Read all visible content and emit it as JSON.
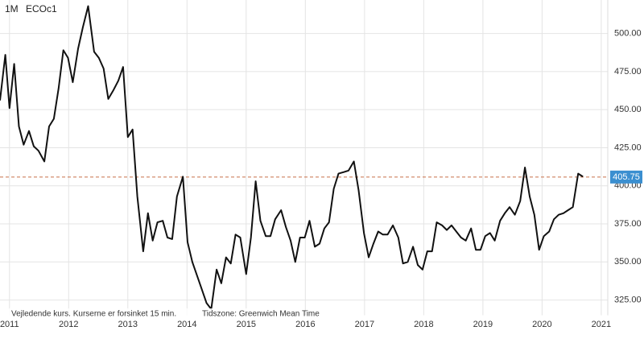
{
  "chart_data": {
    "type": "line",
    "interval": "1M",
    "note": "Vejledende kurs. Kurserne er forsinket 15 min.",
    "timezone": "Tidszone: Greenwich Mean Time",
    "current_price": 405.75,
    "current_price_color": "#3b8fd0",
    "current_line_color": "#c8704a",
    "x": [
      2010.84,
      2010.93,
      2011.0,
      2011.08,
      2011.16,
      2011.24,
      2011.33,
      2011.41,
      2011.49,
      2011.59,
      2011.67,
      2011.75,
      2011.83,
      2011.91,
      2011.99,
      2012.07,
      2012.16,
      2012.24,
      2012.33,
      2012.43,
      2012.51,
      2012.59,
      2012.67,
      2012.76,
      2012.84,
      2012.92,
      2013.0,
      2013.08,
      2013.16,
      2013.26,
      2013.34,
      2013.42,
      2013.5,
      2013.59,
      2013.67,
      2013.75,
      2013.83,
      2013.93,
      2014.01,
      2014.09,
      2014.17,
      2014.25,
      2014.33,
      2014.41,
      2014.5,
      2014.58,
      2014.66,
      2014.74,
      2014.82,
      2014.9,
      2015.0,
      2015.08,
      2015.16,
      2015.24,
      2015.33,
      2015.41,
      2015.49,
      2015.59,
      2015.67,
      2015.75,
      2015.83,
      2015.91,
      2015.99,
      2016.07,
      2016.16,
      2016.24,
      2016.32,
      2016.4,
      2016.48,
      2016.56,
      2016.65,
      2016.73,
      2016.82,
      2016.9,
      2016.99,
      2017.07,
      2017.15,
      2017.23,
      2017.31,
      2017.39,
      2017.48,
      2017.57,
      2017.65,
      2017.73,
      2017.82,
      2017.9,
      2017.98,
      2018.06,
      2018.14,
      2018.22,
      2018.31,
      2018.39,
      2018.47,
      2018.55,
      2018.63,
      2018.71,
      2018.8,
      2018.88,
      2018.96,
      2019.04,
      2019.12,
      2019.2,
      2019.29,
      2019.37,
      2019.45,
      2019.54,
      2019.63,
      2019.71,
      2019.79,
      2019.87,
      2019.95,
      2020.03,
      2020.12,
      2020.2,
      2020.28,
      2020.36,
      2020.44,
      2020.52,
      2020.61,
      2020.69
    ],
    "series": [
      {
        "name": "ECOc1",
        "color": "#111111",
        "values": [
          456,
          486,
          451,
          480,
          439,
          427,
          436,
          426,
          423,
          416,
          439,
          444,
          464,
          489,
          484,
          468,
          490,
          504,
          518,
          488,
          484,
          477,
          457,
          463,
          469,
          478,
          432,
          437,
          393,
          357,
          382,
          364,
          376,
          377,
          366,
          365,
          393,
          406,
          363,
          350,
          341,
          332,
          323,
          319,
          345,
          336,
          353,
          349,
          368,
          366,
          342,
          366,
          403,
          377,
          367,
          367,
          378,
          384,
          373,
          364,
          350,
          366,
          366,
          377,
          360,
          362,
          372,
          376,
          398,
          408,
          409,
          410,
          416,
          397,
          369,
          353,
          362,
          370,
          368,
          368,
          374,
          366,
          349,
          350,
          360,
          348,
          345,
          357,
          357,
          376,
          374,
          371,
          374,
          370,
          366,
          364,
          372,
          358,
          358,
          367,
          369,
          364,
          377,
          382,
          386,
          381,
          390,
          412,
          393,
          381,
          358,
          367,
          370,
          378,
          381,
          382,
          384,
          386,
          408,
          406
        ]
      }
    ],
    "xlim": [
      2010.84,
      2021.11
    ],
    "xticks": [
      2011,
      2012,
      2013,
      2014,
      2015,
      2016,
      2017,
      2018,
      2019,
      2020,
      2021
    ],
    "ylim": [
      315,
      522
    ],
    "yticks": [
      {
        "value": 325,
        "label": "325.00"
      },
      {
        "value": 350,
        "label": "350.00"
      },
      {
        "value": 375,
        "label": "375.00"
      },
      {
        "value": 400,
        "label": "400.00"
      },
      {
        "value": 425,
        "label": "425.00"
      },
      {
        "value": 450,
        "label": "450.00"
      },
      {
        "value": 475,
        "label": "475.00"
      },
      {
        "value": 500,
        "label": "500.00"
      }
    ],
    "grid": true
  }
}
